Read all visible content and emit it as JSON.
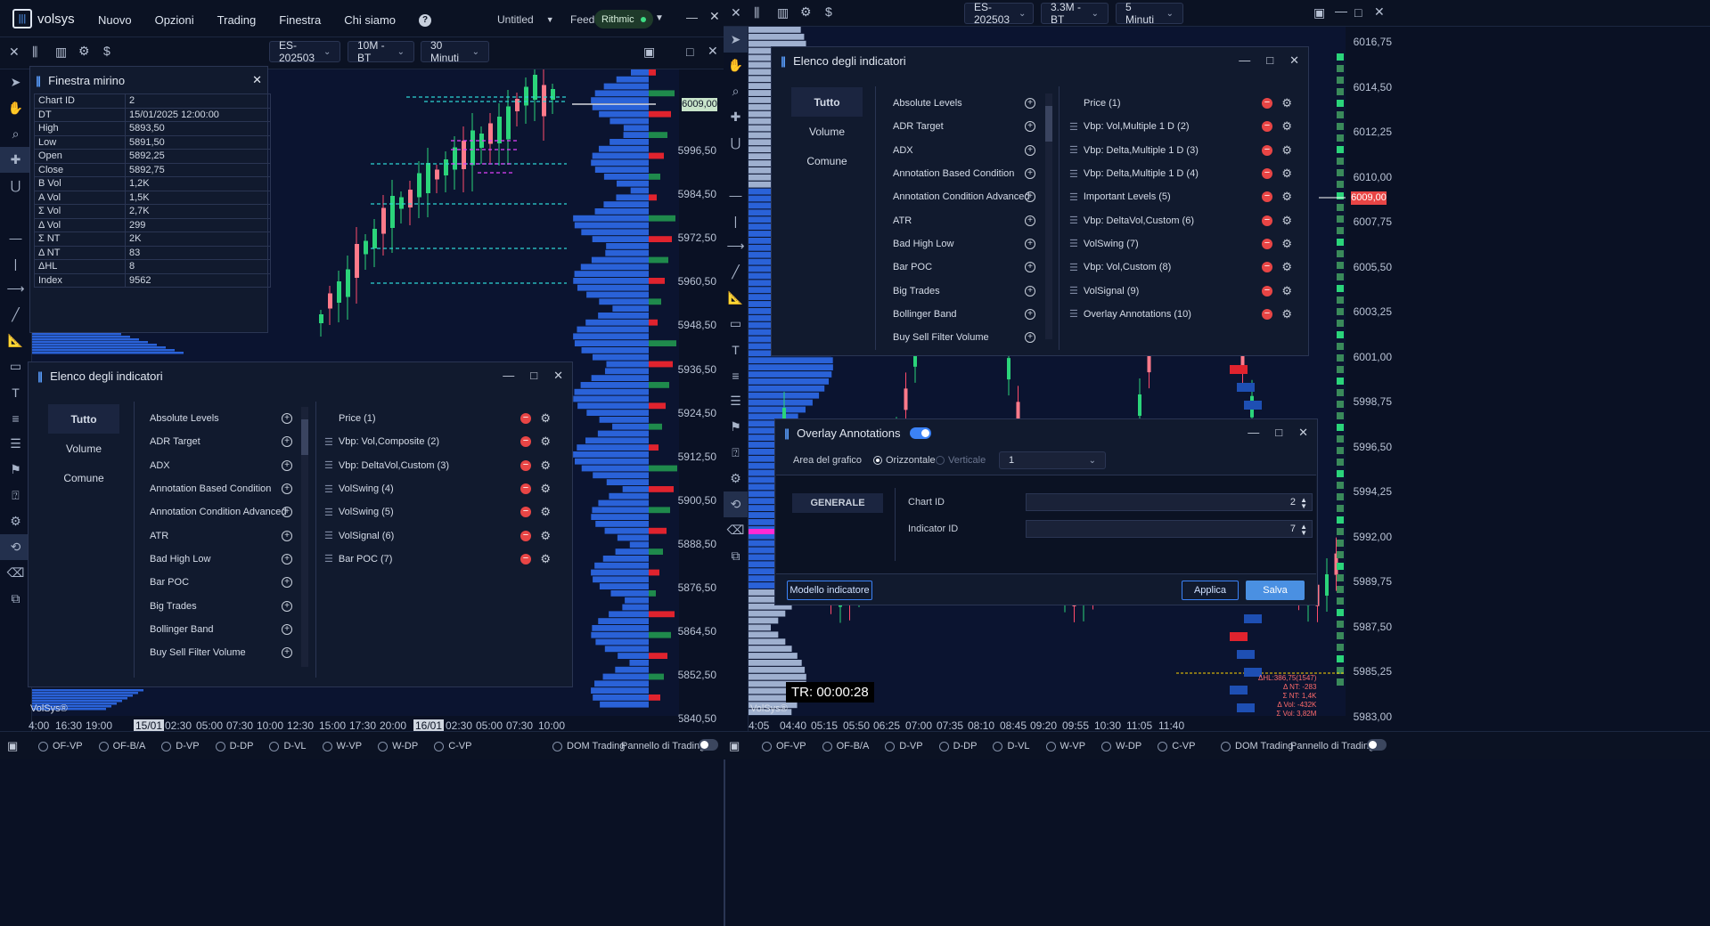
{
  "left": {
    "app_name": "volsys",
    "menu": [
      "Nuovo",
      "Opzioni",
      "Trading",
      "Finestra",
      "Chi siamo"
    ],
    "help_icon": "help-icon",
    "workspace": "Untitled",
    "feed_label": "Feed",
    "feed_value": "Rithmic",
    "symbol": "ES-202503",
    "chart_type": "10M - BT",
    "timeframe": "30 Minuti",
    "price_axis": [
      "5996,50",
      "5984,50",
      "5972,50",
      "5960,50",
      "5948,50",
      "5936,50",
      "5924,50",
      "5912,50",
      "5900,50",
      "5888,50",
      "5876,50",
      "5864,50",
      "5852,50",
      "5840,50"
    ],
    "current_price": "6009,00",
    "time_axis": [
      "4:00",
      "16:30",
      "19:00",
      "15/01",
      "02:30",
      "05:00",
      "07:30",
      "10:00",
      "12:30",
      "15:00",
      "17:30",
      "20:00",
      "16/01",
      "02:30",
      "05:00",
      "07:30",
      "10:00"
    ],
    "watermark": "VolSys®",
    "bottom_options": [
      "OF-VP",
      "OF-B/A",
      "D-VP",
      "D-DP",
      "D-VL",
      "W-VP",
      "W-DP",
      "C-VP"
    ],
    "dom_trading": "DOM Trading",
    "trading_panel": "Pannello di Trading",
    "mirino": {
      "title": "Finestra mirino",
      "rows": [
        {
          "k": "Chart ID",
          "v": "2",
          "c": ""
        },
        {
          "k": "DT",
          "v": "15/01/2025 12:00:00",
          "c": ""
        },
        {
          "k": "High",
          "v": "5893,50",
          "c": "g"
        },
        {
          "k": "Low",
          "v": "5891,50",
          "c": "g"
        },
        {
          "k": "Open",
          "v": "5892,25",
          "c": "g"
        },
        {
          "k": "Close",
          "v": "5892,75",
          "c": "g"
        },
        {
          "k": "B Vol",
          "v": "1,2K",
          "c": "r"
        },
        {
          "k": "A Vol",
          "v": "1,5K",
          "c": "g"
        },
        {
          "k": "Σ Vol",
          "v": "2,7K",
          "c": ""
        },
        {
          "k": "Δ Vol",
          "v": "299",
          "c": "g"
        },
        {
          "k": "Σ NT",
          "v": "2K",
          "c": ""
        },
        {
          "k": "Δ NT",
          "v": "83",
          "c": "g"
        },
        {
          "k": "ΔHL",
          "v": "8",
          "c": "g"
        },
        {
          "k": "Index",
          "v": "9562",
          "c": ""
        }
      ]
    },
    "indicators": {
      "title": "Elenco degli indicatori",
      "categories": [
        "Tutto",
        "Volume",
        "Comune"
      ],
      "available": [
        "Absolute Levels",
        "ADR Target",
        "ADX",
        "Annotation Based Condition",
        "Annotation Condition Advanced",
        "ATR",
        "Bad High Low",
        "Bar POC",
        "Big Trades",
        "Bollinger Band",
        "Buy Sell Filter Volume"
      ],
      "active": [
        "Price (1)",
        "Vbp: Vol,Composite (2)",
        "Vbp: DeltaVol,Custom (3)",
        "VolSwing (4)",
        "VolSwing (5)",
        "VolSignal (6)",
        "Bar POC (7)"
      ]
    }
  },
  "right": {
    "symbol": "ES-202503",
    "chart_type": "3.3M - BT",
    "timeframe": "5 Minuti",
    "price_axis": [
      "6016,75",
      "6014,50",
      "6012,25",
      "6010,00",
      "6007,75",
      "6005,50",
      "6003,25",
      "6001,00",
      "5998,75",
      "5996,50",
      "5994,25",
      "5992,00",
      "5989,75",
      "5987,50",
      "5985,25",
      "5983,00"
    ],
    "current_price": "6009,00",
    "time_axis": [
      "4:05",
      "04:40",
      "05:15",
      "05:50",
      "06:25",
      "07:00",
      "07:35",
      "08:10",
      "08:45",
      "09:20",
      "09:55",
      "10:30",
      "11:05",
      "11:40"
    ],
    "timer": "TR: 00:00:28",
    "watermark": "VolSys®",
    "stats": [
      "ΔHL:386,75(1547)",
      "Δ NT: -283",
      "Σ NT: 1,4K",
      "Δ Vol: -432K",
      "Σ Vol: 3,82M"
    ],
    "bottom_options": [
      "OF-VP",
      "OF-B/A",
      "D-VP",
      "D-DP",
      "D-VL",
      "W-VP",
      "W-DP",
      "C-VP"
    ],
    "dom_trading": "DOM Trading",
    "trading_panel": "Pannello di Trading",
    "indicators": {
      "title": "Elenco degli indicatori",
      "categories": [
        "Tutto",
        "Volume",
        "Comune"
      ],
      "available": [
        "Absolute Levels",
        "ADR Target",
        "ADX",
        "Annotation Based Condition",
        "Annotation Condition Advanced",
        "ATR",
        "Bad High Low",
        "Bar POC",
        "Big Trades",
        "Bollinger Band",
        "Buy Sell Filter Volume"
      ],
      "active": [
        "Price (1)",
        "Vbp: Vol,Multiple 1 D (2)",
        "Vbp: Delta,Multiple 1 D (3)",
        "Vbp: Delta,Multiple 1 D (4)",
        "Important Levels (5)",
        "Vbp: DeltaVol,Custom (6)",
        "VolSwing (7)",
        "Vbp: Vol,Custom (8)",
        "VolSignal (9)",
        "Overlay Annotations (10)"
      ]
    },
    "overlay": {
      "title": "Overlay Annotations",
      "area_label": "Area del grafico",
      "orient_h": "Orizzontale",
      "orient_v": "Verticale",
      "area_value": "1",
      "section": "GENERALE",
      "chart_id_label": "Chart ID",
      "chart_id": "2",
      "indicator_id_label": "Indicator ID",
      "indicator_id": "7",
      "template_btn": "Modello indicatore",
      "apply_btn": "Applica",
      "save_btn": "Salva"
    }
  },
  "colors": {
    "accent": "#3b82f6",
    "up": "#3ddc84",
    "down": "#ff5a5a",
    "bg": "#0b1430"
  }
}
